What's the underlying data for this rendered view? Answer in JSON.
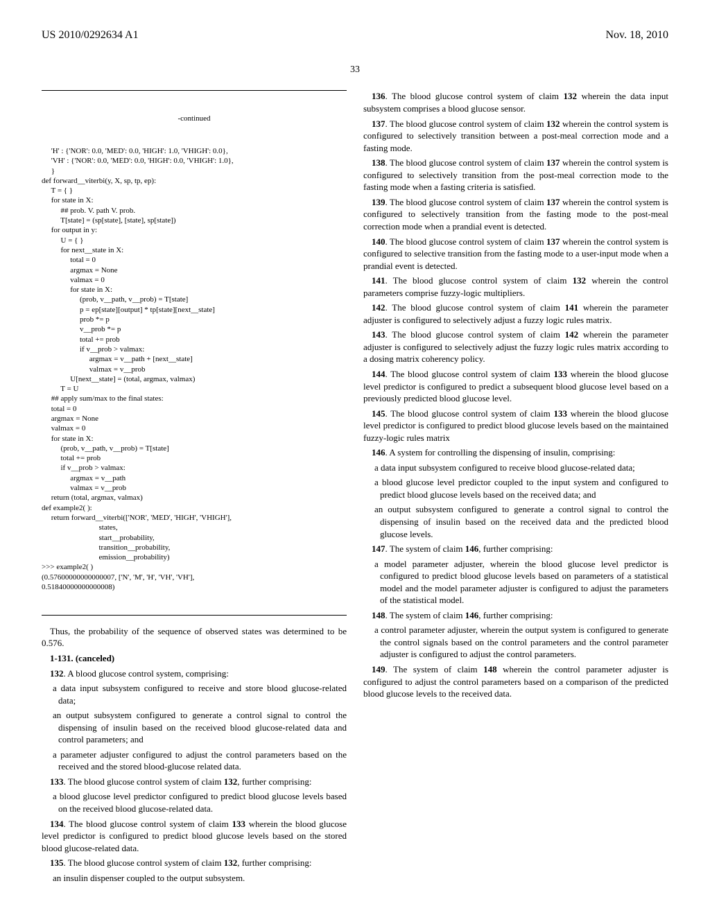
{
  "header": {
    "publication_number": "US 2010/0292634 A1",
    "publication_date": "Nov. 18, 2010",
    "page_number": "33"
  },
  "code": {
    "continued_label": "-continued",
    "body": "     'H' : {'NOR': 0.0, 'MED': 0.0, 'HIGH': 1.0, 'VHIGH': 0.0},\n     'VH' : {'NOR': 0.0, 'MED': 0.0, 'HIGH': 0.0, 'VHIGH': 1.0},\n     }\ndef forward__viterbi(y, X, sp, tp, ep):\n     T = { }\n     for state in X:\n          ## prob. V. path V. prob.\n          T[state] = (sp[state], [state], sp[state])\n     for output in y:\n          U = { }\n          for next__state in X:\n               total = 0\n               argmax = None\n               valmax = 0\n               for state in X:\n                    (prob, v__path, v__prob) = T[state]\n                    p = ep[state][output] * tp[state][next__state]\n                    prob *= p\n                    v__prob *= p\n                    total += prob\n                    if v__prob > valmax:\n                         argmax = v__path + [next__state]\n                         valmax = v__prob\n               U[next__state] = (total, argmax, valmax)\n          T = U\n     ## apply sum/max to the final states:\n     total = 0\n     argmax = None\n     valmax = 0\n     for state in X:\n          (prob, v__path, v__prob) = T[state]\n          total += prob\n          if v__prob > valmax:\n               argmax = v__path\n               valmax = v__prob\n     return (total, argmax, valmax)\ndef example2( ):\n     return forward__viterbi(['NOR', 'MED', 'HIGH', 'VHIGH'],\n                              states,\n                              start__probability,\n                              transition__probability,\n                              emission__probability)\n>>> example2( )\n(0.57600000000000007, ['N', 'M', 'H', 'VH', 'VH'],\n0.51840000000000008)"
  },
  "left_text": {
    "conclusion": "Thus, the probability of the sequence of observed states was determined to be 0.576.",
    "c1_131": "1-131. (canceled)",
    "c132_lead": "132. A blood glucose control system, comprising:",
    "c132_a": "a data input subsystem configured to receive and store blood glucose-related data;",
    "c132_b": "an output subsystem configured to generate a control signal to control the dispensing of insulin based on the received blood glucose-related data and control parameters; and",
    "c132_c": "a parameter adjuster configured to adjust the control parameters based on the received and the stored blood-glucose related data.",
    "c133_lead": "133. The blood glucose control system of claim 132, further comprising:",
    "c133_a": "a blood glucose level predictor configured to predict blood glucose levels based on the received blood glucose-related data.",
    "c134": "134. The blood glucose control system of claim 133 wherein the blood glucose level predictor is configured to predict blood glucose levels based on the stored blood glucose-related data.",
    "c135_lead": "135. The blood glucose control system of claim 132, further comprising:",
    "c135_a": "an insulin dispenser coupled to the output subsystem."
  },
  "right_text": {
    "c136": "136. The blood glucose control system of claim 132 wherein the data input subsystem comprises a blood glucose sensor.",
    "c137": "137. The blood glucose control system of claim 132 wherein the control system is configured to selectively transition between a post-meal correction mode and a fasting mode.",
    "c138": "138. The blood glucose control system of claim 137 wherein the control system is configured to selectively transition from the post-meal correction mode to the fasting mode when a fasting criteria is satisfied.",
    "c139": "139. The blood glucose control system of claim 137 wherein the control system is configured to selectively transition from the fasting mode to the post-meal correction mode when a prandial event is detected.",
    "c140": "140. The blood glucose control system of claim 137 wherein the control system is configured to selective transition from the fasting mode to a user-input mode when a prandial event is detected.",
    "c141": "141. The blood glucose control system of claim 132 wherein the control parameters comprise fuzzy-logic multipliers.",
    "c142": "142. The blood glucose control system of claim 141 wherein the parameter adjuster is configured to selectively adjust a fuzzy logic rules matrix.",
    "c143": "143. The blood glucose control system of claim 142 wherein the parameter adjuster is configured to selectively adjust the fuzzy logic rules matrix according to a dosing matrix coherency policy.",
    "c144": "144. The blood glucose control system of claim 133 wherein the blood glucose level predictor is configured to predict a subsequent blood glucose level based on a previously predicted blood glucose level.",
    "c145": "145. The blood glucose control system of claim 133 wherein the blood glucose level predictor is configured to predict blood glucose levels based on the maintained fuzzy-logic rules matrix",
    "c146_lead": "146. A system for controlling the dispensing of insulin, comprising:",
    "c146_a": "a data input subsystem configured to receive blood glucose-related data;",
    "c146_b": "a blood glucose level predictor coupled to the input system and configured to predict blood glucose levels based on the received data; and",
    "c146_c": "an output subsystem configured to generate a control signal to control the dispensing of insulin based on the received data and the predicted blood glucose levels.",
    "c147_lead": "147. The system of claim 146, further comprising:",
    "c147_a": "a model parameter adjuster, wherein the blood glucose level predictor is configured to predict blood glucose levels based on parameters of a statistical model and the model parameter adjuster is configured to adjust the parameters of the statistical model.",
    "c148_lead": "148. The system of claim 146, further comprising:",
    "c148_a": "a control parameter adjuster, wherein the output system is configured to generate the control signals based on the control parameters and the control parameter adjuster is configured to adjust the control parameters.",
    "c149": "149. The system of claim 148 wherein the control parameter adjuster is configured to adjust the control parameters based on a comparison of the predicted blood glucose levels to the received data."
  }
}
